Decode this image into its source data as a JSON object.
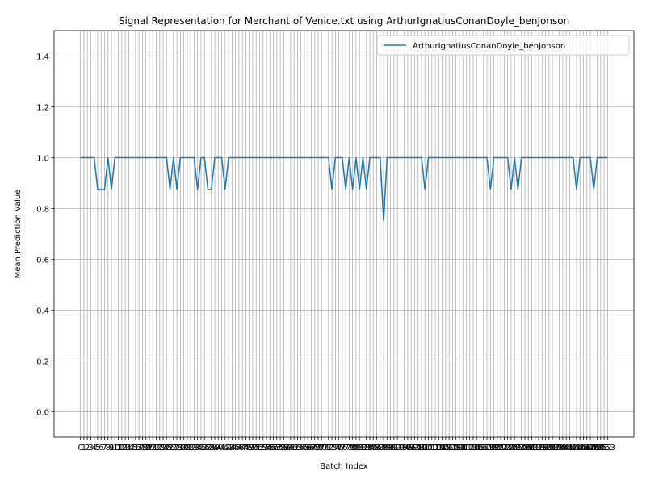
{
  "chart_data": {
    "type": "line",
    "title": "Signal Representation for Merchant of Venice.txt using ArthurIgnatiusConanDoyle_benJonson",
    "xlabel": "Batch Index",
    "ylabel": "Mean Prediction Value",
    "x": [
      0,
      1,
      2,
      3,
      4,
      5,
      6,
      7,
      8,
      9,
      10,
      11,
      12,
      13,
      14,
      15,
      16,
      17,
      18,
      19,
      20,
      21,
      22,
      23,
      24,
      25,
      26,
      27,
      28,
      29,
      30,
      31,
      32,
      33,
      34,
      35,
      36,
      37,
      38,
      39,
      40,
      41,
      42,
      43,
      44,
      45,
      46,
      47,
      48,
      49,
      50,
      51,
      52,
      53,
      54,
      55,
      56,
      57,
      58,
      59,
      60,
      61,
      62,
      63,
      64,
      65,
      66,
      67,
      68,
      69,
      70,
      71,
      72,
      73,
      74,
      75,
      76,
      77,
      78,
      79,
      80,
      81,
      82,
      83,
      84,
      85,
      86,
      87,
      88,
      89,
      90,
      91,
      92,
      93,
      94,
      95,
      96,
      97,
      98,
      99,
      100,
      101,
      102,
      103,
      104,
      105,
      106,
      107,
      108,
      109,
      110,
      111,
      112,
      113,
      114,
      115,
      116,
      117,
      118,
      119,
      120,
      121,
      122,
      123,
      124,
      125,
      126,
      127,
      128,
      129,
      130,
      131,
      132,
      133,
      134,
      135,
      136,
      137,
      138,
      139,
      140,
      141,
      142,
      143,
      144,
      145,
      146,
      147,
      148,
      149,
      150,
      151,
      152,
      153
    ],
    "series": [
      {
        "name": "ArthurIgnatiusConanDoyle_benJonson",
        "color": "#1f77b4",
        "values": [
          1,
          1,
          1,
          1,
          1,
          0.875,
          0.875,
          0.875,
          1,
          0.875,
          1,
          1,
          1,
          1,
          1,
          1,
          1,
          1,
          1,
          1,
          1,
          1,
          1,
          1,
          1,
          1,
          0.875,
          1,
          0.875,
          1,
          1,
          1,
          1,
          1,
          0.875,
          1,
          1,
          0.875,
          0.875,
          1,
          1,
          1,
          0.875,
          1,
          1,
          1,
          1,
          1,
          1,
          1,
          1,
          1,
          1,
          1,
          1,
          1,
          1,
          1,
          1,
          1,
          1,
          1,
          1,
          1,
          1,
          1,
          1,
          1,
          1,
          1,
          1,
          1,
          1,
          0.875,
          1,
          1,
          1,
          0.875,
          1,
          0.875,
          1,
          0.875,
          1,
          0.875,
          1,
          1,
          1,
          1,
          0.75,
          1,
          1,
          1,
          1,
          1,
          1,
          1,
          1,
          1,
          1,
          1,
          0.875,
          1,
          1,
          1,
          1,
          1,
          1,
          1,
          1,
          1,
          1,
          1,
          1,
          1,
          1,
          1,
          1,
          1,
          1,
          0.875,
          1,
          1,
          1,
          1,
          1,
          0.875,
          1,
          0.875,
          1,
          1,
          1,
          1,
          1,
          1,
          1,
          1,
          1,
          1,
          1,
          1,
          1,
          1,
          1,
          1,
          0.875,
          1,
          1,
          1,
          1,
          0.875,
          1,
          1,
          1,
          1
        ]
      }
    ],
    "xlim": [
      -7.65,
      160.65
    ],
    "xticks": [
      0,
      1,
      2,
      3,
      4,
      5,
      6,
      7,
      8,
      9,
      10,
      11,
      12,
      13,
      14,
      15,
      16,
      17,
      18,
      19,
      20,
      21,
      22,
      23,
      24,
      25,
      26,
      27,
      28,
      29,
      30,
      31,
      32,
      33,
      34,
      35,
      36,
      37,
      38,
      39,
      40,
      41,
      42,
      43,
      44,
      45,
      46,
      47,
      48,
      49,
      50,
      51,
      52,
      53,
      54,
      55,
      56,
      57,
      58,
      59,
      60,
      61,
      62,
      63,
      64,
      65,
      66,
      67,
      68,
      69,
      70,
      71,
      72,
      73,
      74,
      75,
      76,
      77,
      78,
      79,
      80,
      81,
      82,
      83,
      84,
      85,
      86,
      87,
      88,
      89,
      90,
      91,
      92,
      93,
      94,
      95,
      96,
      97,
      98,
      99,
      100,
      101,
      102,
      103,
      104,
      105,
      106,
      107,
      108,
      109,
      110,
      111,
      112,
      113,
      114,
      115,
      116,
      117,
      118,
      119,
      120,
      121,
      122,
      123,
      124,
      125,
      126,
      127,
      128,
      129,
      130,
      131,
      132,
      133,
      134,
      135,
      136,
      137,
      138,
      139,
      140,
      141,
      142,
      143,
      144,
      145,
      146,
      147,
      148,
      149,
      150,
      151,
      152,
      153
    ],
    "ylim": [
      -0.1,
      1.5
    ],
    "yticks": [
      {
        "value": 0,
        "label": "0.0"
      },
      0.2,
      0.4,
      0.6,
      0.8,
      {
        "value": 1,
        "label": "1.0"
      },
      1.2,
      1.4
    ],
    "grid": true,
    "legend": "upper right"
  }
}
